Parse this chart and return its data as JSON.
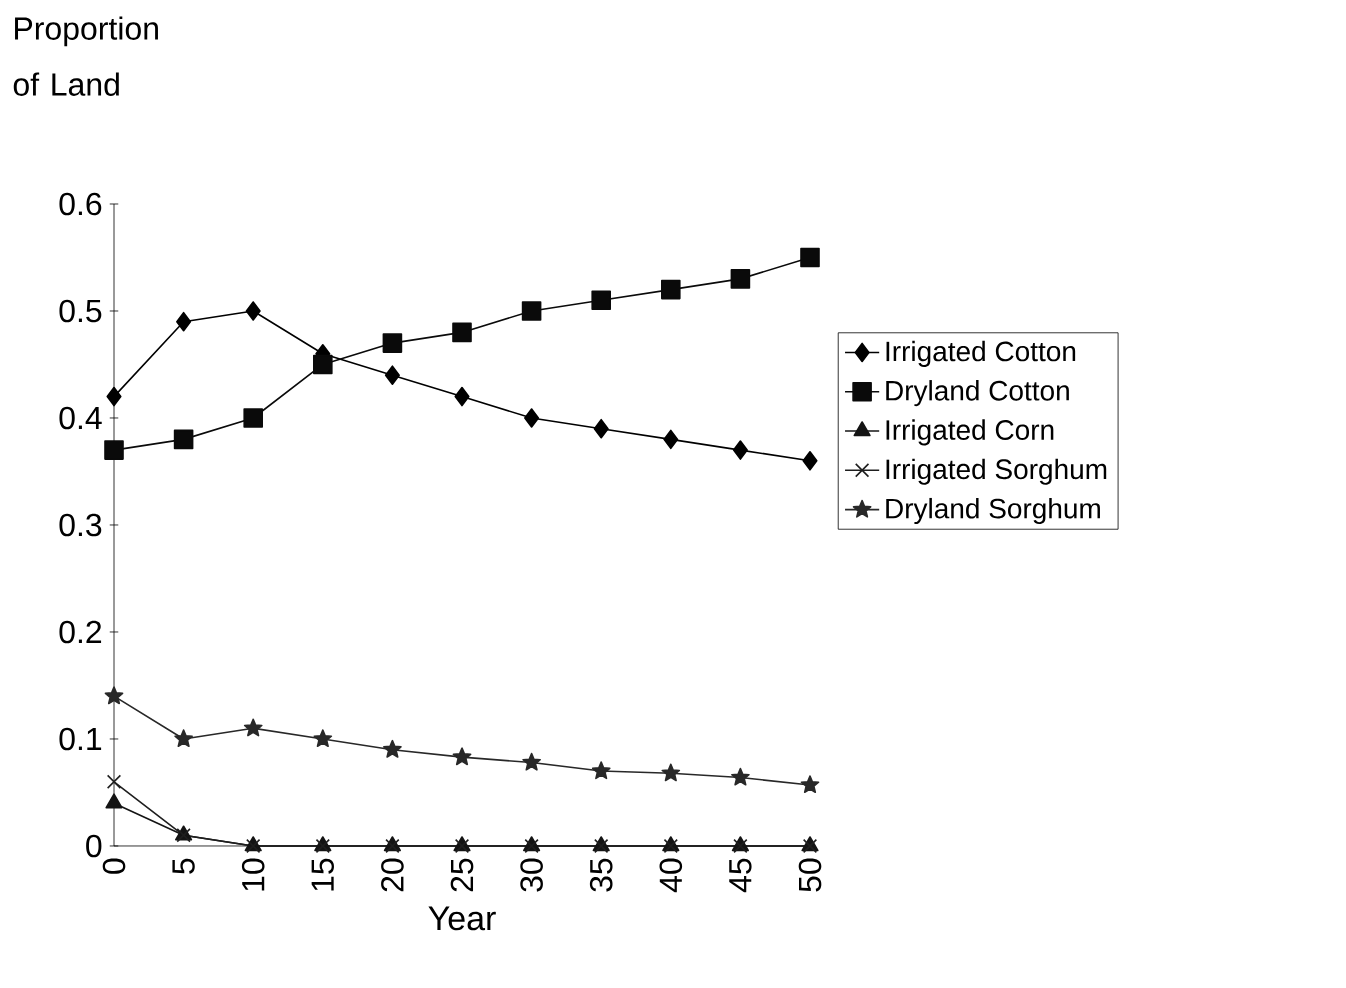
{
  "chart_data": {
    "type": "line",
    "ylabel": "Proportion of Land",
    "xlabel": "Year",
    "categories": [
      "0",
      "5",
      "10",
      "15",
      "20",
      "25",
      "30",
      "35",
      "40",
      "45",
      "50"
    ],
    "ylim": [
      0,
      0.6
    ],
    "yticks": [
      0,
      0.1,
      0.2,
      0.3,
      0.4,
      0.5,
      0.6
    ],
    "legend": "right",
    "line_style": "solid",
    "series": [
      {
        "name": "Irrigated Cotton",
        "color": "#000000",
        "marker": "diamond",
        "values": [
          0.42,
          0.49,
          0.5,
          0.46,
          0.44,
          0.42,
          0.4,
          0.39,
          0.38,
          0.37,
          0.36
        ]
      },
      {
        "name": "Dryland Cotton",
        "color": "#0a0a0a",
        "marker": "square",
        "values": [
          0.37,
          0.38,
          0.4,
          0.45,
          0.47,
          0.48,
          0.5,
          0.51,
          0.52,
          0.53,
          0.55
        ]
      },
      {
        "name": "Irrigated Corn",
        "color": "#141414",
        "marker": "triangle",
        "values": [
          0.04,
          0.01,
          0,
          0,
          0,
          0,
          0,
          0,
          0,
          0,
          0
        ]
      },
      {
        "name": "Irrigated Sorghum",
        "color": "#1e1e1e",
        "marker": "cross",
        "values": [
          0.06,
          0.01,
          0,
          0,
          0,
          0,
          0,
          0,
          0,
          0,
          0
        ]
      },
      {
        "name": "Dryland Sorghum",
        "color": "#282828",
        "marker": "star",
        "values": [
          0.14,
          0.1,
          0.11,
          0.1,
          0.09,
          0.083,
          0.078,
          0.07,
          0.068,
          0.064,
          0.057
        ]
      }
    ]
  }
}
